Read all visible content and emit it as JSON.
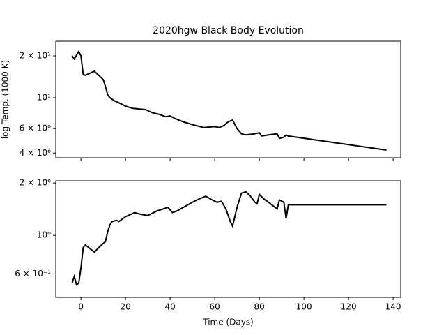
{
  "chart_data": [
    {
      "type": "line",
      "title": "2020hgw Black Body Evolution",
      "y_label": "log Temp. (1000 K)",
      "y_log": true,
      "xlim": [
        -11.3,
        143.4
      ],
      "xticks": [
        0,
        20,
        40,
        60,
        80,
        100,
        120,
        140
      ],
      "ylim": [
        3.7,
        25.5
      ],
      "yticks": [
        {
          "value": 4,
          "label": "4 × 10⁰"
        },
        {
          "value": 6,
          "label": "6 × 10⁰"
        },
        {
          "value": 10,
          "label": "10¹"
        },
        {
          "value": 20,
          "label": "2 × 10¹"
        }
      ],
      "series": [
        {
          "color": "#000000",
          "x": [
            -4,
            -3,
            -1,
            0,
            1,
            2,
            4,
            6,
            8,
            10,
            11,
            12,
            13,
            15,
            17,
            20,
            23,
            26,
            29,
            32,
            35,
            38,
            40,
            42,
            46,
            50,
            55,
            60,
            62,
            64,
            66,
            68,
            70,
            72,
            74,
            78,
            80,
            81,
            84,
            88,
            89,
            91,
            92,
            93,
            137
          ],
          "values": [
            20,
            19,
            21.5,
            20,
            14.7,
            14.5,
            15,
            15.5,
            14.5,
            13.5,
            12,
            10.5,
            10,
            9.5,
            9.2,
            8.7,
            8.4,
            8.3,
            8.2,
            7.8,
            7.6,
            7.3,
            7.4,
            7.1,
            6.7,
            6.4,
            6.1,
            6.2,
            6.1,
            6.3,
            6.7,
            6.9,
            6.0,
            5.5,
            5.4,
            5.5,
            5.6,
            5.3,
            5.4,
            5.5,
            5.1,
            5.2,
            5.4,
            5.3,
            4.2
          ]
        }
      ]
    },
    {
      "type": "line",
      "x_label": "Time (Days)",
      "y_log": true,
      "xlim": [
        -11.3,
        143.4
      ],
      "xticks": [
        0,
        20,
        40,
        60,
        80,
        100,
        120,
        140
      ],
      "ylim": [
        0.44,
        2.06
      ],
      "yticks": [
        {
          "value": 0.6,
          "label": "6 × 10⁻¹"
        },
        {
          "value": 1,
          "label": "10⁰"
        },
        {
          "value": 2,
          "label": "2 × 10⁰"
        }
      ],
      "series": [
        {
          "color": "#000000",
          "x": [
            -4,
            -3,
            -2,
            -1,
            0,
            1,
            2,
            4,
            6,
            8,
            10,
            11,
            12,
            13,
            14,
            16,
            17,
            20,
            24,
            27,
            30,
            34,
            37,
            39,
            41,
            43,
            46,
            50,
            53,
            56,
            58,
            61,
            63,
            65,
            67,
            68,
            70,
            72,
            74,
            76,
            78,
            79,
            80,
            82,
            85,
            87,
            88,
            89,
            91,
            92,
            93,
            137
          ],
          "values": [
            0.53,
            0.58,
            0.52,
            0.53,
            0.65,
            0.85,
            0.88,
            0.84,
            0.8,
            0.85,
            0.9,
            0.92,
            1.05,
            1.15,
            1.2,
            1.22,
            1.2,
            1.28,
            1.35,
            1.32,
            1.3,
            1.38,
            1.42,
            1.45,
            1.35,
            1.38,
            1.45,
            1.55,
            1.62,
            1.68,
            1.62,
            1.55,
            1.57,
            1.42,
            1.2,
            1.13,
            1.45,
            1.75,
            1.78,
            1.68,
            1.55,
            1.52,
            1.72,
            1.62,
            1.52,
            1.45,
            1.42,
            1.6,
            1.55,
            1.25,
            1.5,
            1.5
          ]
        }
      ]
    }
  ]
}
